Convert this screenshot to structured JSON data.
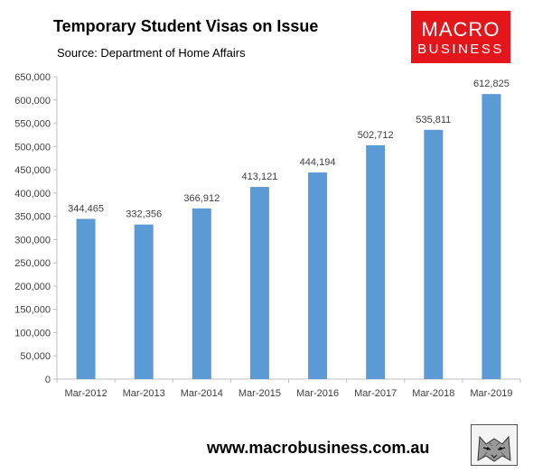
{
  "header": {
    "title": "Temporary Student Visas on Issue",
    "subtitle": "Source: Department of Home Affairs"
  },
  "logo": {
    "line1": "MACRO",
    "line2": "BUSINESS",
    "background": "#e4161c",
    "text_color": "#ffffff"
  },
  "footer": {
    "url": "www.macrobusiness.com.au",
    "emblem_icon": "wolf-emblem-icon"
  },
  "colors": {
    "bar": "#5b9bd5",
    "axis": "#bfbfbf",
    "text": "#404040"
  },
  "chart_data": {
    "type": "bar",
    "title": "Temporary Student Visas on Issue",
    "subtitle": "Source: Department of Home Affairs",
    "categories": [
      "Mar-2012",
      "Mar-2013",
      "Mar-2014",
      "Mar-2015",
      "Mar-2016",
      "Mar-2017",
      "Mar-2018",
      "Mar-2019"
    ],
    "values": [
      344465,
      332356,
      366912,
      413121,
      444194,
      502712,
      535811,
      612825
    ],
    "data_labels": [
      "344,465",
      "332,356",
      "366,912",
      "413,121",
      "444,194",
      "502,712",
      "535,811",
      "612,825"
    ],
    "y_ticks": [
      "0",
      "50,000",
      "100,000",
      "150,000",
      "200,000",
      "250,000",
      "300,000",
      "350,000",
      "400,000",
      "450,000",
      "500,000",
      "550,000",
      "600,000",
      "650,000"
    ],
    "ylim": [
      0,
      650000
    ],
    "y_step": 50000,
    "xlabel": "",
    "ylabel": "",
    "grid": false,
    "legend": "none"
  }
}
